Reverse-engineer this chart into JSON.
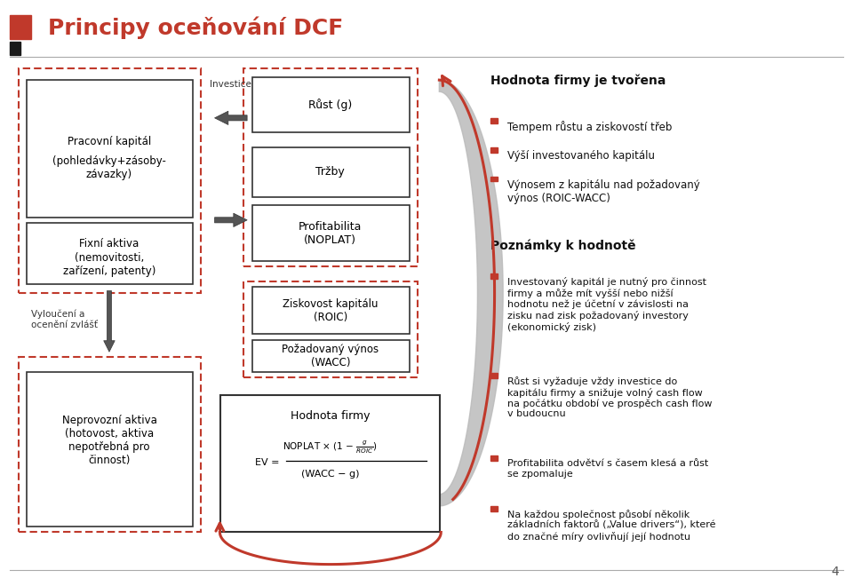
{
  "title": "Principy oceňování DCF",
  "bg_color": "#ffffff",
  "title_color": "#c0392b",
  "box_border_color": "#000000",
  "dashed_border_color": "#c0392b",
  "arrow_color": "#000000",
  "red_arrow_color": "#c0392b",
  "gray_fill": "#cccccc",
  "slide_num": "4",
  "right_text": {
    "heading1": "Hodnota firmy je tvořena",
    "bullets1": [
      "Tempem růstu a ziskovostí třeb",
      "Výší investovaného kapitálu",
      "Výnosem z kapitálu nad požadovaný\nvýnos (ROIC-WACC)"
    ],
    "heading2": "Poznámky k hodnotě",
    "bullets2": [
      "Investovaný kapitál je nutný pro činnost\nfirmy a může mít vyšší nebo nižší\nhodnotu než je účetní v závislosti na\nzisku nad zisk požadovaný investory\n(ekonomický zisk)",
      "Růst si vyžaduje vždy investice do\nkapitálu firmy a snižuje volný cash flow\nna počátku období ve prospěch cash flow\nv budoucnu",
      "Profitabilita odvětví s časem klesá a růst\nse zpomaluje",
      "Na každou společnost působí několik\nzákladních faktorů („Value drivers“), které\ndo značné míry ovlivňují její hodnotu"
    ]
  }
}
